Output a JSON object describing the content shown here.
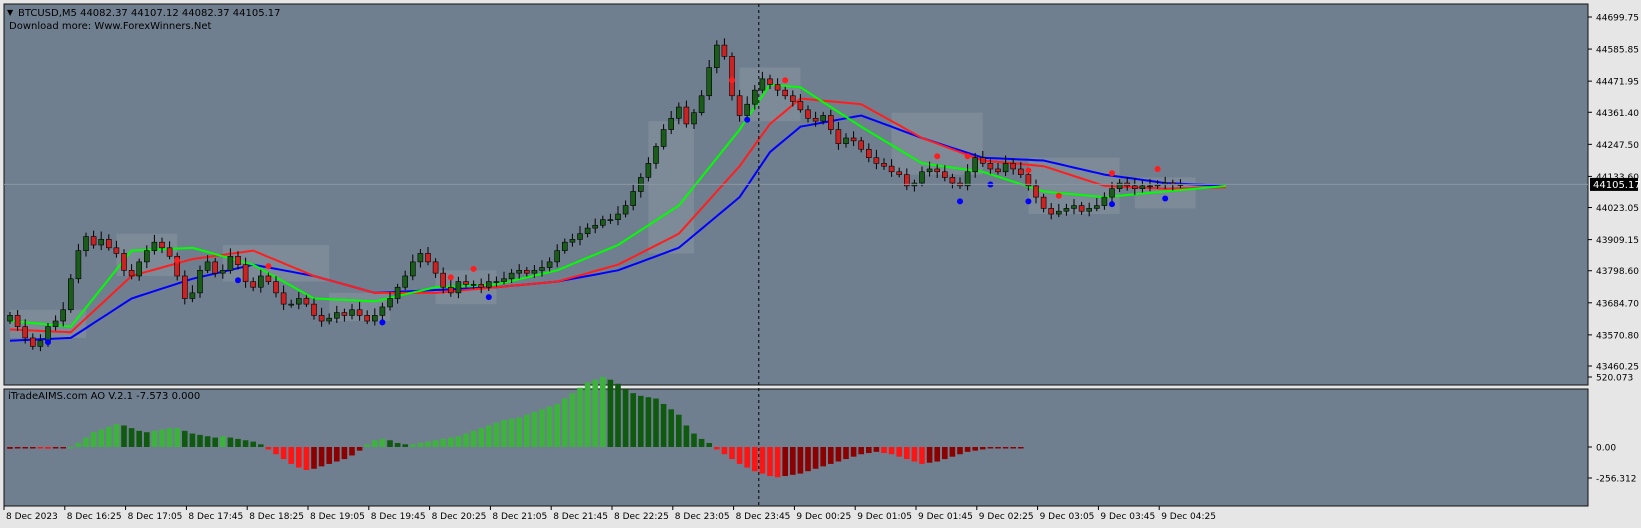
{
  "window": {
    "symbol_line": "BTCUSD,M5  44082.37 44107.12 44082.37 44105.17",
    "download_line": "Download more: Www.ForexWinners.Net",
    "indicator_label": "iTradeAIMS.com AO V.2.1 -7.573 0.000"
  },
  "colors": {
    "background": "#707f8f",
    "frame": "#101010",
    "axis_bg": "#e6e6e6",
    "bull": "#1a5c1a",
    "bear": "#cc2222",
    "ma_fast": "#00ff00",
    "ma_mid": "#ff1e1e",
    "ma_slow": "#0000ff",
    "ao_up": "#3cb43c",
    "ao_up_dark": "#0f5a0f",
    "ao_down": "#ff1414",
    "ao_down_dark": "#8c0000",
    "zone": "#8d98a5",
    "label_box": "#000000"
  },
  "chart_data": [
    {
      "type": "candlestick",
      "title": "BTCUSD,M5",
      "y_ticks": [
        "44699.75",
        "44585.85",
        "44471.95",
        "44361.40",
        "44247.50",
        "44133.60",
        "44023.05",
        "43909.15",
        "43798.60",
        "43684.70",
        "43570.80",
        "43460.25"
      ],
      "y_tick_values": [
        44699.75,
        44585.85,
        44471.95,
        44361.4,
        44247.5,
        44133.6,
        44023.05,
        43909.15,
        43798.6,
        43684.7,
        43570.8,
        43460.25
      ],
      "ylim": [
        43450,
        44720
      ],
      "current_price_label": "44105.17",
      "current_price": 44105.17,
      "x_labels": [
        "8 Dec 2023",
        "8 Dec 16:25",
        "8 Dec 17:05",
        "8 Dec 17:45",
        "8 Dec 18:25",
        "8 Dec 19:05",
        "8 Dec 19:45",
        "8 Dec 20:25",
        "8 Dec 21:05",
        "8 Dec 21:45",
        "8 Dec 22:25",
        "8 Dec 23:05",
        "8 Dec 23:45",
        "9 Dec 00:25",
        "9 Dec 01:05",
        "9 Dec 01:45",
        "9 Dec 02:25",
        "9 Dec 03:05",
        "9 Dec 03:45",
        "9 Dec 04:25"
      ],
      "bars_per_label": 8,
      "crosshair_bar": 98,
      "closes": [
        43640,
        43600,
        43560,
        43530,
        43550,
        43600,
        43620,
        43660,
        43770,
        43870,
        43920,
        43890,
        43910,
        43880,
        43860,
        43800,
        43780,
        43830,
        43870,
        43900,
        43880,
        43850,
        43780,
        43700,
        43720,
        43800,
        43830,
        43790,
        43800,
        43850,
        43820,
        43760,
        43740,
        43780,
        43760,
        43720,
        43680,
        43680,
        43700,
        43680,
        43640,
        43620,
        43630,
        43650,
        43640,
        43660,
        43640,
        43620,
        43640,
        43670,
        43700,
        43740,
        43780,
        43830,
        43860,
        43830,
        43790,
        43740,
        43720,
        43760,
        43750,
        43750,
        43740,
        43760,
        43760,
        43770,
        43790,
        43800,
        43790,
        43800,
        43810,
        43830,
        43870,
        43900,
        43910,
        43930,
        43950,
        43960,
        43980,
        43980,
        44000,
        44030,
        44080,
        44130,
        44180,
        44240,
        44300,
        44340,
        44380,
        44320,
        44360,
        44420,
        44520,
        44600,
        44560,
        44420,
        44350,
        44390,
        44440,
        44480,
        44460,
        44440,
        44420,
        44400,
        44370,
        44340,
        44330,
        44350,
        44300,
        44250,
        44270,
        44260,
        44230,
        44200,
        44180,
        44170,
        44150,
        44140,
        44100,
        44110,
        44150,
        44160,
        44150,
        44130,
        44110,
        44100,
        44150,
        44200,
        44180,
        44160,
        44150,
        44180,
        44160,
        44140,
        44100,
        44060,
        44020,
        44000,
        44010,
        44020,
        44030,
        44010,
        44020,
        44030,
        44060,
        44090,
        44110,
        44100,
        44090,
        44100,
        44100,
        44105,
        44110,
        44105,
        44105
      ],
      "ma_fast_key": [
        [
          0,
          43620
        ],
        [
          8,
          43600
        ],
        [
          16,
          43870
        ],
        [
          24,
          43880
        ],
        [
          32,
          43820
        ],
        [
          40,
          43700
        ],
        [
          48,
          43690
        ],
        [
          56,
          43740
        ],
        [
          64,
          43750
        ],
        [
          72,
          43800
        ],
        [
          80,
          43890
        ],
        [
          88,
          44030
        ],
        [
          96,
          44300
        ],
        [
          100,
          44460
        ],
        [
          104,
          44450
        ],
        [
          112,
          44310
        ],
        [
          120,
          44180
        ],
        [
          128,
          44150
        ],
        [
          136,
          44080
        ],
        [
          144,
          44060
        ],
        [
          152,
          44080
        ],
        [
          160,
          44100
        ]
      ],
      "ma_mid_key": [
        [
          0,
          43590
        ],
        [
          8,
          43580
        ],
        [
          16,
          43780
        ],
        [
          24,
          43840
        ],
        [
          32,
          43870
        ],
        [
          40,
          43780
        ],
        [
          48,
          43720
        ],
        [
          56,
          43720
        ],
        [
          64,
          43740
        ],
        [
          72,
          43760
        ],
        [
          80,
          43820
        ],
        [
          88,
          43930
        ],
        [
          96,
          44170
        ],
        [
          100,
          44320
        ],
        [
          104,
          44410
        ],
        [
          112,
          44390
        ],
        [
          120,
          44270
        ],
        [
          128,
          44190
        ],
        [
          136,
          44170
        ],
        [
          144,
          44100
        ],
        [
          152,
          44090
        ],
        [
          160,
          44095
        ]
      ],
      "ma_slow_key": [
        [
          0,
          43550
        ],
        [
          8,
          43560
        ],
        [
          16,
          43700
        ],
        [
          24,
          43770
        ],
        [
          32,
          43820
        ],
        [
          40,
          43780
        ],
        [
          48,
          43720
        ],
        [
          56,
          43730
        ],
        [
          64,
          43740
        ],
        [
          72,
          43760
        ],
        [
          80,
          43800
        ],
        [
          88,
          43880
        ],
        [
          96,
          44060
        ],
        [
          100,
          44220
        ],
        [
          104,
          44310
        ],
        [
          112,
          44350
        ],
        [
          120,
          44270
        ],
        [
          128,
          44200
        ],
        [
          136,
          44190
        ],
        [
          144,
          44140
        ],
        [
          152,
          44110
        ],
        [
          160,
          44100
        ]
      ],
      "arrows_up_bars": [
        5,
        30,
        49,
        63,
        97,
        125,
        129,
        134,
        145,
        152
      ],
      "arrows_down_bars": [
        22,
        34,
        58,
        61,
        95,
        102,
        122,
        126,
        134,
        138,
        145,
        151
      ]
    },
    {
      "type": "histogram",
      "title": "iTradeAIMS.com AO V.2.1",
      "y_ticks": [
        "520.073",
        "0.00",
        "-256.312"
      ],
      "y_tick_values": [
        520.073,
        0,
        -256.312
      ],
      "ylim": [
        -270,
        530
      ],
      "values": [
        -15,
        -12,
        -10,
        -10,
        -12,
        -14,
        -10,
        -8,
        0,
        30,
        70,
        110,
        130,
        150,
        170,
        160,
        140,
        120,
        110,
        120,
        130,
        140,
        140,
        120,
        100,
        90,
        80,
        70,
        80,
        70,
        60,
        50,
        40,
        20,
        -20,
        -60,
        -100,
        -140,
        -170,
        -190,
        -180,
        -160,
        -140,
        -120,
        -100,
        -70,
        -30,
        20,
        50,
        60,
        50,
        30,
        20,
        20,
        30,
        40,
        50,
        60,
        70,
        80,
        100,
        120,
        140,
        160,
        180,
        200,
        210,
        220,
        240,
        260,
        280,
        300,
        320,
        360,
        400,
        440,
        480,
        500,
        520,
        500,
        470,
        430,
        400,
        380,
        370,
        360,
        320,
        280,
        240,
        160,
        100,
        60,
        30,
        -20,
        -60,
        -100,
        -140,
        -170,
        -200,
        -220,
        -240,
        -250,
        -240,
        -230,
        -220,
        -200,
        -180,
        -160,
        -140,
        -120,
        -100,
        -80,
        -60,
        -50,
        -40,
        -50,
        -60,
        -80,
        -100,
        -120,
        -140,
        -130,
        -120,
        -100,
        -80,
        -60,
        -40,
        -30,
        -20,
        -10,
        -8,
        -6,
        -5,
        -5
      ]
    }
  ]
}
